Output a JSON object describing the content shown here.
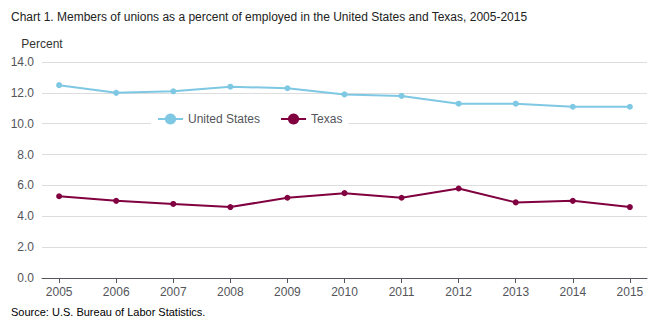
{
  "chart_data": {
    "type": "line",
    "title": "Chart 1. Members of unions as a percent of employed in the United States and Texas, 2005-2015",
    "ylabel": "Percent",
    "source": "Source: U.S. Bureau of Labor Statistics.",
    "x": [
      2005,
      2006,
      2007,
      2008,
      2009,
      2010,
      2011,
      2012,
      2013,
      2014,
      2015
    ],
    "series": [
      {
        "name": "United States",
        "color": "#7EC8E3",
        "values": [
          12.5,
          12.0,
          12.1,
          12.4,
          12.3,
          11.9,
          11.8,
          11.3,
          11.3,
          11.1,
          11.1
        ]
      },
      {
        "name": "Texas",
        "color": "#800040",
        "values": [
          5.3,
          5.0,
          4.8,
          4.6,
          5.2,
          5.5,
          5.2,
          5.8,
          4.9,
          5.0,
          4.6
        ]
      }
    ],
    "xlim": [
      2004.7,
      2015.3
    ],
    "xticks": [
      2005,
      2006,
      2007,
      2008,
      2009,
      2010,
      2011,
      2012,
      2013,
      2014,
      2015
    ],
    "ylim": [
      0,
      14.0
    ],
    "yticks": [
      {
        "value": 0,
        "label": "0.0"
      },
      {
        "value": 2,
        "label": "2.0"
      },
      {
        "value": 4,
        "label": "4.0"
      },
      {
        "value": 6,
        "label": "6.0"
      },
      {
        "value": 8,
        "label": "8.0"
      },
      {
        "value": 10,
        "label": "10.0"
      },
      {
        "value": 12,
        "label": "12.0"
      },
      {
        "value": 14,
        "label": "14.0"
      }
    ],
    "grid": true,
    "legend": "upper left",
    "marker": "circle",
    "line_style": "solid"
  }
}
